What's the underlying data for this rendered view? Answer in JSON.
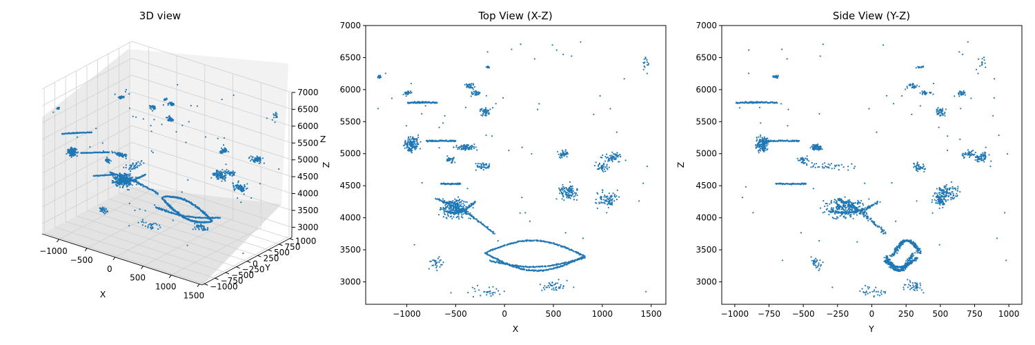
{
  "colors": {
    "points": "#1f77b4",
    "pane_light": "#f2f2f2",
    "pane_mid": "#e8e8e8",
    "pane_dark": "#e0e0e0",
    "grid": "#cfcfcf"
  },
  "chart_data": [
    {
      "type": "scatter",
      "projection": "3d",
      "title": "3D view",
      "xlabel": "X",
      "ylabel": "Y",
      "zlabel": "Z",
      "xlim": [
        -1300,
        1550
      ],
      "ylim": [
        -1050,
        1050
      ],
      "zlim": [
        2700,
        7000
      ],
      "xticks": [
        -1000,
        -500,
        0,
        500,
        1000,
        1500
      ],
      "yticks": [
        -1000,
        -750,
        -500,
        -250,
        0,
        250,
        500,
        750,
        1000
      ],
      "zticks": [
        3000,
        3500,
        4000,
        4500,
        5000,
        5500,
        6000,
        6500,
        7000
      ],
      "grid": true
    },
    {
      "type": "scatter",
      "title": "Top View (X-Z)",
      "xlabel": "X",
      "ylabel": "Z",
      "xlim": [
        -1420,
        1650
      ],
      "ylim": [
        2650,
        7000
      ],
      "xticks": [
        -1000,
        -500,
        0,
        500,
        1000,
        1500
      ],
      "yticks": [
        3000,
        3500,
        4000,
        4500,
        5000,
        5500,
        6000,
        6500,
        7000
      ],
      "grid": false
    },
    {
      "type": "scatter",
      "title": "Side View (Y-Z)",
      "xlabel": "Y",
      "ylabel": "Z",
      "xlim": [
        -1095,
        1095
      ],
      "ylim": [
        2650,
        7000
      ],
      "xticks": [
        -1000,
        -750,
        -500,
        -250,
        0,
        250,
        500,
        750,
        1000
      ],
      "yticks": [
        3000,
        3500,
        4000,
        4500,
        5000,
        5500,
        6000,
        6500,
        7000
      ],
      "grid": false
    }
  ]
}
